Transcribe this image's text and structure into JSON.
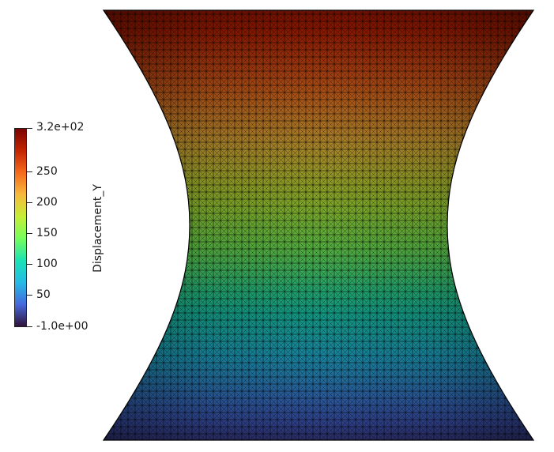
{
  "scalar_bar": {
    "title": "Displacement_Y",
    "max_label": "3.2e+02",
    "min_label": "-1.0e+00",
    "ticks": [
      {
        "label": "250",
        "value": 250
      },
      {
        "label": "200",
        "value": 200
      },
      {
        "label": "150",
        "value": 150
      },
      {
        "label": "100",
        "value": 100
      },
      {
        "label": "50",
        "value": 50
      }
    ],
    "range": [
      -1.0,
      320.0
    ],
    "colormap": [
      "#30123b",
      "#4669dc",
      "#24bbe6",
      "#1be3b5",
      "#76fd5d",
      "#c5ef36",
      "#f7ba3c",
      "#f66a1d",
      "#c42402",
      "#7a0403"
    ]
  },
  "mesh": {
    "field": "Displacement_Y",
    "edge_color": "#000000",
    "shading": "surface with edges"
  }
}
